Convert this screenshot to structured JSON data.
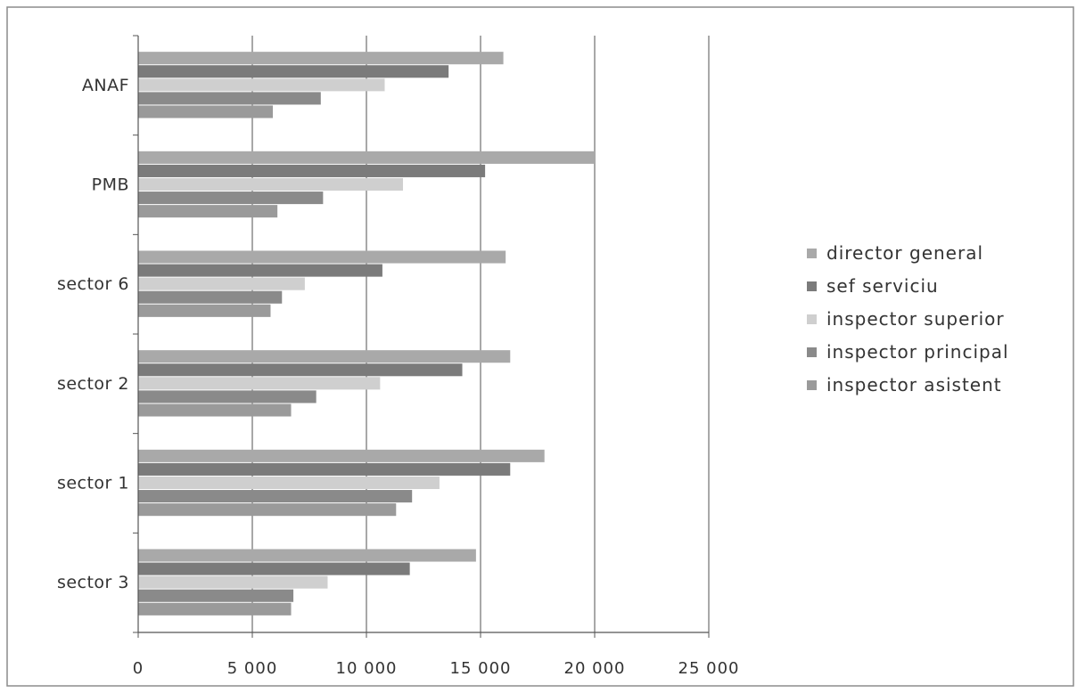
{
  "chart_data": {
    "type": "bar",
    "orientation": "horizontal",
    "categories": [
      "ANAF",
      "PMB",
      "sector 6",
      "sector 2",
      "sector 1",
      "sector 3"
    ],
    "series": [
      {
        "name": "director general",
        "color": "#a9a9a9",
        "values": [
          16000,
          20000,
          16100,
          16300,
          17800,
          14800
        ]
      },
      {
        "name": "sef serviciu",
        "color": "#7b7b7b",
        "values": [
          13600,
          15200,
          10700,
          14200,
          16300,
          11900
        ]
      },
      {
        "name": "inspector superior",
        "color": "#cfcfcf",
        "values": [
          10800,
          11600,
          7300,
          10600,
          13200,
          8300
        ]
      },
      {
        "name": "inspector principal",
        "color": "#8a8a8a",
        "values": [
          8000,
          8100,
          6300,
          7800,
          12000,
          6800
        ]
      },
      {
        "name": "inspector asistent",
        "color": "#9a9a9a",
        "values": [
          5900,
          6100,
          5800,
          6700,
          11300,
          6700
        ]
      }
    ],
    "x_ticks": [
      "0",
      "5 000",
      "10 000",
      "15 000",
      "20 000",
      "25 000"
    ],
    "xlim": [
      0,
      25000
    ],
    "grid": "vertical",
    "legend": "right"
  }
}
